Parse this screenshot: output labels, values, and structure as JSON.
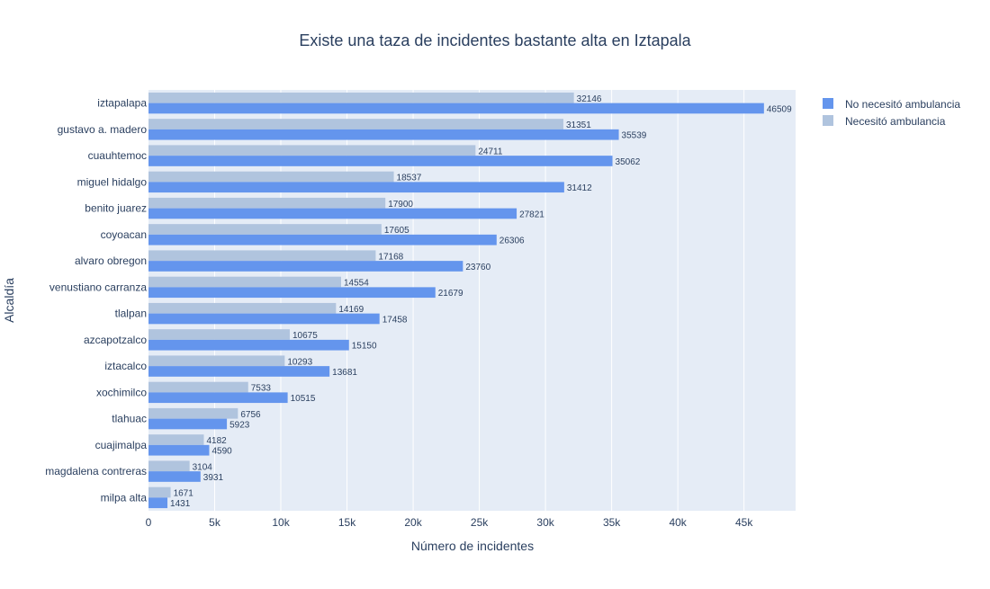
{
  "chart_data": {
    "type": "bar",
    "orientation": "horizontal",
    "title": "Existe una taza de incidentes bastante alta en Iztapala",
    "xlabel": "Número de incidentes",
    "ylabel": "Alcaldía",
    "xlim": [
      0,
      48900
    ],
    "xticks": [
      0,
      5000,
      10000,
      15000,
      20000,
      25000,
      30000,
      35000,
      40000,
      45000
    ],
    "xtick_labels": [
      "0",
      "5k",
      "10k",
      "15k",
      "20k",
      "25k",
      "30k",
      "35k",
      "40k",
      "45k"
    ],
    "grid": true,
    "legend_position": "top-right",
    "categories": [
      "iztapalapa",
      "gustavo a. madero",
      "cuauhtemoc",
      "miguel hidalgo",
      "benito juarez",
      "coyoacan",
      "alvaro obregon",
      "venustiano carranza",
      "tlalpan",
      "azcapotzalco",
      "iztacalco",
      "xochimilco",
      "tlahuac",
      "cuajimalpa",
      "magdalena contreras",
      "milpa alta"
    ],
    "series": [
      {
        "name": "No necesitó ambulancia",
        "color": "#6495ed",
        "values": [
          46509,
          35539,
          35062,
          31412,
          27821,
          26306,
          23760,
          21679,
          17458,
          15150,
          13681,
          10515,
          5923,
          4590,
          3931,
          1431
        ]
      },
      {
        "name": "Necesitó ambulancia",
        "color": "#b0c4de",
        "values": [
          32146,
          31351,
          24711,
          18537,
          17900,
          17605,
          17168,
          14554,
          14169,
          10675,
          10293,
          7533,
          6756,
          4182,
          3104,
          1671
        ]
      }
    ]
  },
  "colors": {
    "plot_bg": "#e5ecf6",
    "grid": "#ffffff",
    "text": "#2a3f5f"
  }
}
